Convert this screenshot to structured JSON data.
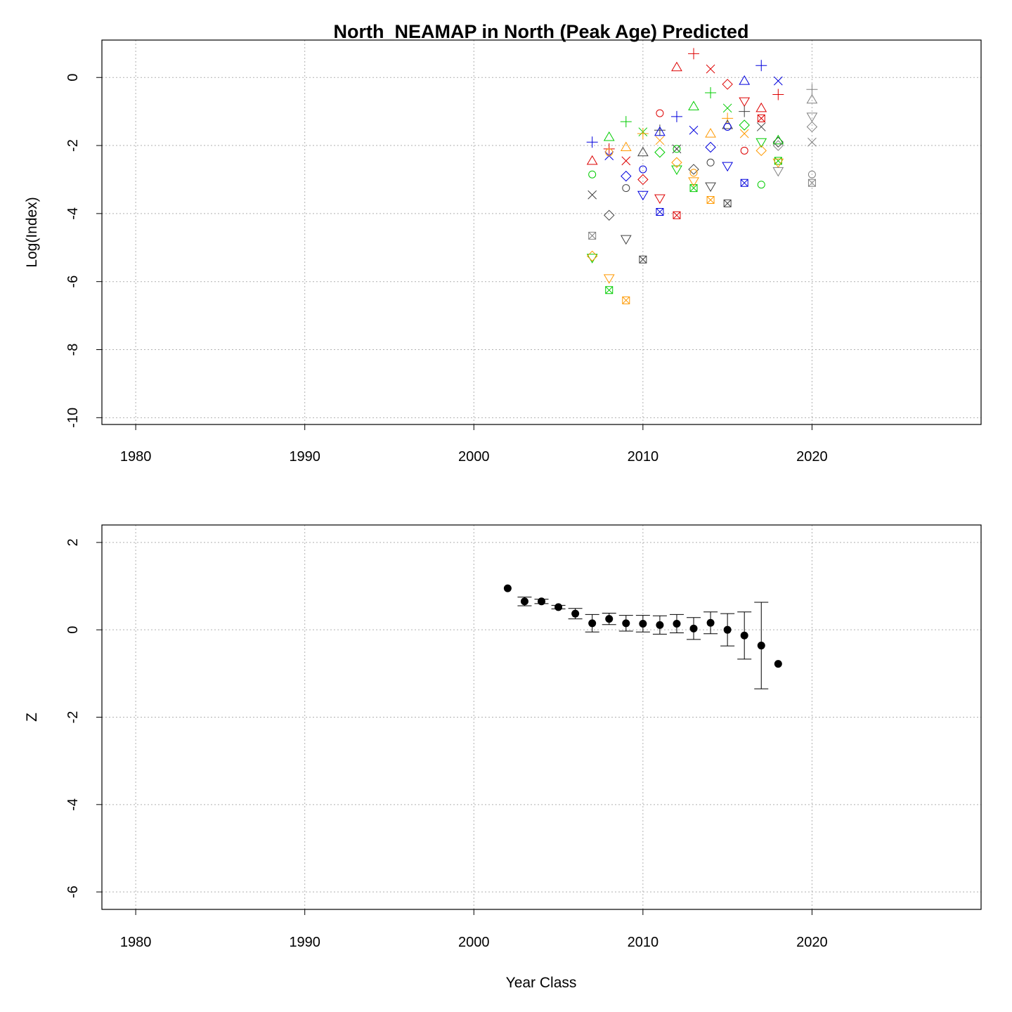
{
  "chart_data": [
    {
      "type": "line",
      "title": "North_NEAMAP in North (Peak Age) Predicted",
      "xlabel": "",
      "ylabel": "Log(Index)",
      "xlim": [
        1978,
        2030
      ],
      "ylim": [
        -10.2,
        1.1
      ],
      "xticks": [
        1980,
        1990,
        2000,
        2010,
        2020
      ],
      "yticks": [
        0,
        -2,
        -4,
        -6,
        -8,
        -10
      ],
      "grid": true,
      "legend": "none",
      "series": [
        {
          "color": "#404040",
          "points": [
            [
              2007,
              -3.45
            ],
            [
              2008,
              -4.05
            ],
            [
              2009,
              -4.75
            ],
            [
              2010,
              -5.35
            ]
          ],
          "markers": [
            "x",
            "diamond",
            "tri_down",
            "box_x"
          ]
        },
        {
          "color": "#00cc00",
          "points": [
            [
              2007,
              -5.3
            ],
            [
              2008,
              -6.25
            ]
          ],
          "markers": [
            "tri_down",
            "box_x"
          ]
        },
        {
          "color": "#ff9900",
          "points": [
            [
              2007,
              -5.25
            ],
            [
              2008,
              -5.9
            ],
            [
              2009,
              -6.55
            ]
          ],
          "markers": [
            "diamond",
            "tri_down",
            "box_x"
          ]
        },
        {
          "color": "#0000dd",
          "points": [
            [
              2007,
              -1.9
            ],
            [
              2008,
              -2.3
            ],
            [
              2009,
              -2.9
            ],
            [
              2010,
              -3.45
            ],
            [
              2011,
              -3.95
            ]
          ],
          "markers": [
            "plus",
            "x",
            "diamond",
            "tri_down",
            "box_x"
          ]
        },
        {
          "color": "#dd0000",
          "points": [
            [
              2007,
              -2.45
            ],
            [
              2008,
              -2.1
            ],
            [
              2009,
              -2.45
            ],
            [
              2010,
              -3.0
            ],
            [
              2011,
              -3.55
            ],
            [
              2012,
              -4.05
            ]
          ],
          "markers": [
            "tri_up",
            "plus",
            "x",
            "diamond",
            "tri_down",
            "box_x"
          ]
        },
        {
          "color": "#00cc00",
          "points": [
            [
              2007,
              -2.85
            ],
            [
              2008,
              -1.75
            ],
            [
              2009,
              -1.3
            ],
            [
              2010,
              -1.6
            ],
            [
              2011,
              -2.2
            ],
            [
              2012,
              -2.7
            ],
            [
              2013,
              -3.25
            ]
          ],
          "markers": [
            "circle",
            "tri_up",
            "plus",
            "x",
            "diamond",
            "tri_down",
            "box_x"
          ]
        },
        {
          "color": "#ff9900",
          "points": [
            [
              2008,
              -2.2
            ],
            [
              2009,
              -2.05
            ],
            [
              2010,
              -1.65
            ],
            [
              2011,
              -1.85
            ],
            [
              2012,
              -2.5
            ],
            [
              2013,
              -3.05
            ],
            [
              2014,
              -3.6
            ]
          ],
          "markers": [
            "circle",
            "tri_up",
            "plus",
            "x",
            "diamond",
            "tri_down",
            "box_x"
          ]
        },
        {
          "color": "#404040",
          "points": [
            [
              2009,
              -3.25
            ],
            [
              2010,
              -2.2
            ],
            [
              2011,
              -1.55
            ],
            [
              2012,
              -2.1
            ],
            [
              2013,
              -2.7
            ],
            [
              2014,
              -3.2
            ],
            [
              2015,
              -3.7
            ]
          ],
          "markers": [
            "circle",
            "tri_up",
            "plus",
            "x",
            "diamond",
            "tri_down",
            "box_x"
          ]
        },
        {
          "color": "#0000dd",
          "points": [
            [
              2010,
              -2.7
            ],
            [
              2011,
              -1.6
            ],
            [
              2012,
              -1.15
            ],
            [
              2013,
              -1.55
            ],
            [
              2014,
              -2.05
            ],
            [
              2015,
              -2.6
            ],
            [
              2016,
              -3.1
            ]
          ],
          "markers": [
            "circle",
            "tri_up",
            "plus",
            "x",
            "diamond",
            "tri_down",
            "box_x"
          ]
        },
        {
          "color": "#dd0000",
          "points": [
            [
              2011,
              -1.05
            ],
            [
              2012,
              0.3
            ],
            [
              2013,
              0.7
            ],
            [
              2014,
              0.25
            ],
            [
              2015,
              -0.2
            ],
            [
              2016,
              -0.7
            ],
            [
              2017,
              -1.2
            ]
          ],
          "markers": [
            "circle",
            "tri_up",
            "plus",
            "x",
            "diamond",
            "tri_down",
            "box_x"
          ]
        },
        {
          "color": "#00cc00",
          "points": [
            [
              2012,
              -2.1
            ],
            [
              2013,
              -0.85
            ],
            [
              2014,
              -0.45
            ],
            [
              2015,
              -0.9
            ],
            [
              2016,
              -1.4
            ],
            [
              2017,
              -1.9
            ],
            [
              2018,
              -2.45
            ]
          ],
          "markers": [
            "circle",
            "tri_up",
            "plus",
            "x",
            "diamond",
            "tri_down",
            "box_x"
          ]
        },
        {
          "color": "#ff9900",
          "points": [
            [
              2013,
              -2.8
            ],
            [
              2014,
              -1.65
            ],
            [
              2015,
              -1.2
            ],
            [
              2016,
              -1.65
            ],
            [
              2017,
              -2.15
            ],
            [
              2018,
              -2.5
            ]
          ],
          "markers": [
            "circle",
            "tri_up",
            "plus",
            "x",
            "diamond",
            "tri_down"
          ]
        },
        {
          "color": "#404040",
          "points": [
            [
              2014,
              -2.5
            ],
            [
              2015,
              -1.4
            ],
            [
              2016,
              -1.0
            ],
            [
              2017,
              -1.45
            ],
            [
              2018,
              -1.9
            ]
          ],
          "markers": [
            "circle",
            "tri_up",
            "plus",
            "x",
            "diamond"
          ]
        },
        {
          "color": "#0000dd",
          "points": [
            [
              2015,
              -1.45
            ],
            [
              2016,
              -0.1
            ],
            [
              2017,
              0.35
            ],
            [
              2018,
              -0.1
            ]
          ],
          "markers": [
            "circle",
            "tri_up",
            "plus",
            "x"
          ]
        },
        {
          "color": "#dd0000",
          "points": [
            [
              2016,
              -2.15
            ],
            [
              2017,
              -0.9
            ],
            [
              2018,
              -0.5
            ]
          ],
          "markers": [
            "circle",
            "tri_up",
            "plus"
          ]
        },
        {
          "color": "#00cc00",
          "points": [
            [
              2017,
              -3.15
            ],
            [
              2018,
              -1.85
            ]
          ],
          "markers": [
            "circle",
            "tri_up"
          ]
        },
        {
          "color": "#808080",
          "points": [
            [
              2007,
              -4.65
            ]
          ],
          "markers": [
            "box_x"
          ]
        },
        {
          "color": "#808080",
          "points": [
            [
              2018,
              -2.0
            ],
            [
              2018,
              -2.75
            ]
          ],
          "markers": [
            "diamond",
            "tri_down"
          ]
        },
        {
          "color": "#808080",
          "points": [
            [
              2020,
              -0.35
            ],
            [
              2020,
              -0.65
            ],
            [
              2020,
              -1.15
            ],
            [
              2020,
              -1.45
            ],
            [
              2020,
              -1.9
            ],
            [
              2020,
              -2.85
            ],
            [
              2020,
              -3.1
            ]
          ],
          "markers": [
            "plus",
            "tri_up",
            "tri_down",
            "diamond",
            "x",
            "circle",
            "box_x"
          ]
        }
      ]
    },
    {
      "type": "scatter",
      "title": "",
      "xlabel": "Year Class",
      "ylabel": "Z",
      "xlim": [
        1978,
        2030
      ],
      "ylim": [
        -6.4,
        2.4
      ],
      "xticks": [
        1980,
        1990,
        2000,
        2010,
        2020
      ],
      "yticks": [
        2,
        0,
        -2,
        -4,
        -6
      ],
      "grid": true,
      "legend": "none",
      "points": [
        {
          "x": 2002,
          "y": 0.95,
          "lo": null,
          "hi": null
        },
        {
          "x": 2003,
          "y": 0.65,
          "lo": 0.55,
          "hi": 0.75
        },
        {
          "x": 2004,
          "y": 0.65,
          "lo": 0.6,
          "hi": 0.7
        },
        {
          "x": 2005,
          "y": 0.52,
          "lo": 0.48,
          "hi": 0.56
        },
        {
          "x": 2006,
          "y": 0.37,
          "lo": 0.25,
          "hi": 0.49
        },
        {
          "x": 2007,
          "y": 0.15,
          "lo": -0.05,
          "hi": 0.35
        },
        {
          "x": 2008,
          "y": 0.25,
          "lo": 0.12,
          "hi": 0.38
        },
        {
          "x": 2009,
          "y": 0.15,
          "lo": -0.03,
          "hi": 0.33
        },
        {
          "x": 2010,
          "y": 0.14,
          "lo": -0.05,
          "hi": 0.33
        },
        {
          "x": 2011,
          "y": 0.11,
          "lo": -0.1,
          "hi": 0.32
        },
        {
          "x": 2012,
          "y": 0.14,
          "lo": -0.07,
          "hi": 0.35
        },
        {
          "x": 2013,
          "y": 0.03,
          "lo": -0.22,
          "hi": 0.28
        },
        {
          "x": 2014,
          "y": 0.16,
          "lo": -0.09,
          "hi": 0.41
        },
        {
          "x": 2015,
          "y": 0.0,
          "lo": -0.37,
          "hi": 0.37
        },
        {
          "x": 2016,
          "y": -0.13,
          "lo": -0.67,
          "hi": 0.41
        },
        {
          "x": 2017,
          "y": -0.36,
          "lo": -1.35,
          "hi": 0.63
        },
        {
          "x": 2018,
          "y": -0.78,
          "lo": null,
          "hi": null
        }
      ]
    }
  ]
}
